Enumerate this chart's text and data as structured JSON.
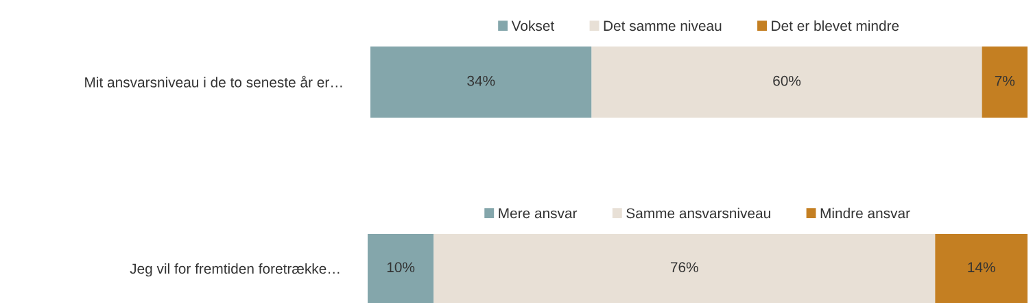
{
  "chart_data": [
    {
      "type": "bar",
      "orientation": "horizontal",
      "stacked": true,
      "legend": "top",
      "categories": [
        "Mit ansvarsniveau i de to seneste år er…"
      ],
      "series": [
        {
          "name": "Vokset",
          "color": "#84a6ab",
          "values": [
            34
          ],
          "value_labels": [
            "34%"
          ]
        },
        {
          "name": "Det samme niveau",
          "color": "#e8e0d6",
          "values": [
            60
          ],
          "value_labels": [
            "60%"
          ]
        },
        {
          "name": "Det er blevet mindre",
          "color": "#c47f22",
          "values": [
            7
          ],
          "value_labels": [
            "7%"
          ]
        }
      ]
    },
    {
      "type": "bar",
      "orientation": "horizontal",
      "stacked": true,
      "legend": "top",
      "categories": [
        "Jeg vil for fremtiden foretrække…"
      ],
      "series": [
        {
          "name": "Mere ansvar",
          "color": "#84a6ab",
          "values": [
            10
          ],
          "value_labels": [
            "10%"
          ]
        },
        {
          "name": "Samme ansvarsniveau",
          "color": "#e8e0d6",
          "values": [
            76
          ],
          "value_labels": [
            "76%"
          ]
        },
        {
          "name": "Mindre ansvar",
          "color": "#c47f22",
          "values": [
            14
          ],
          "value_labels": [
            "14%"
          ]
        }
      ]
    }
  ]
}
